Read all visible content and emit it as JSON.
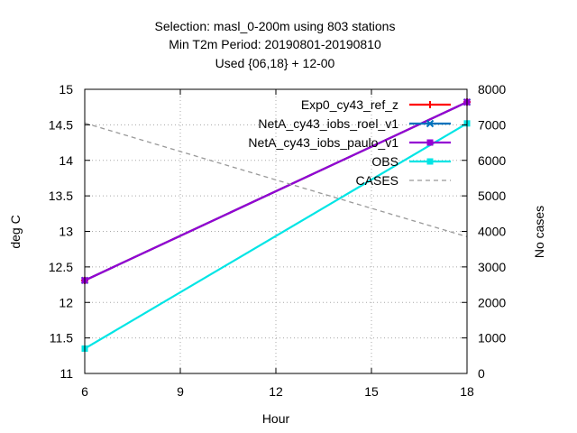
{
  "chart_data": {
    "type": "line",
    "title_lines": [
      "Selection: masl_0-200m using   803 stations",
      "Min T2m   Period: 20190801-20190810",
      "Used {06,18} + 12-00"
    ],
    "xlabel": "Hour",
    "ylabel": "deg C",
    "y2label": "No cases",
    "xlim": [
      6,
      18
    ],
    "ylim": [
      11,
      15
    ],
    "y2lim": [
      0,
      8000
    ],
    "xticks": [
      6,
      9,
      12,
      15,
      18
    ],
    "yticks": [
      "11",
      "11.5",
      "12",
      "12.5",
      "13",
      "13.5",
      "14",
      "14.5",
      "15"
    ],
    "y2ticks": [
      0,
      1000,
      2000,
      3000,
      4000,
      5000,
      6000,
      7000,
      8000
    ],
    "grid": true,
    "legend_position": "top-right",
    "series": [
      {
        "name": "Exp0_cy43_ref_z",
        "color": "#ff0000",
        "axis": "y",
        "style": "solid",
        "marker": "plus",
        "x": [
          6,
          18
        ],
        "y": [
          12.31,
          14.82
        ]
      },
      {
        "name": "NetA_cy43_iobs_roel_v1",
        "color": "#0072bd",
        "axis": "y",
        "style": "solid",
        "marker": "cross",
        "x": [
          6,
          18
        ],
        "y": [
          12.31,
          14.82
        ]
      },
      {
        "name": "NetA_cy43_iobs_paulo_v1",
        "color": "#9400d3",
        "axis": "y",
        "style": "solid",
        "marker": "square",
        "x": [
          6,
          18
        ],
        "y": [
          12.31,
          14.82
        ]
      },
      {
        "name": "OBS",
        "color": "#00e5e5",
        "axis": "y",
        "style": "solid",
        "marker": "square",
        "x": [
          6,
          18
        ],
        "y": [
          11.35,
          14.52
        ]
      },
      {
        "name": "CASES",
        "color": "#999999",
        "axis": "y2",
        "style": "dashed",
        "marker": "none",
        "x": [
          6,
          18
        ],
        "y": [
          7050,
          3850
        ]
      }
    ]
  }
}
